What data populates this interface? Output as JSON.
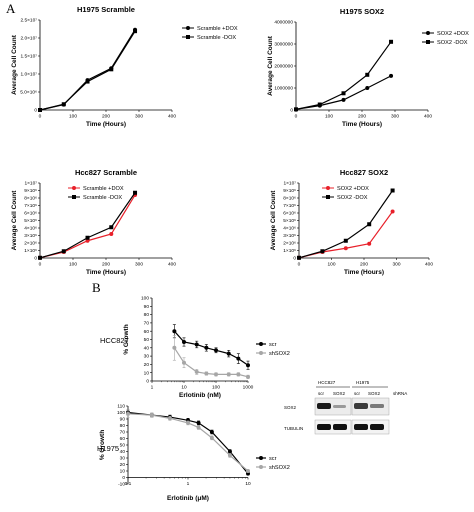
{
  "panel_labels": {
    "a": "A",
    "b": "B"
  },
  "side_labels": {
    "hcc827": "HCC827",
    "h1975": "H1975"
  },
  "western_blot": {
    "group_hcc827": "HCC827",
    "group_h1975": "H1975",
    "lanes_hcc827": [
      "scr",
      "SOX2"
    ],
    "lanes_h1975": [
      "scr",
      "SOX2",
      "shRNA"
    ],
    "row_labels": [
      "SOX2",
      "TUBULIN"
    ]
  },
  "chart_data": [
    {
      "id": "h1975-scramble",
      "type": "line",
      "title": "H1975 Scramble",
      "xlabel": "Time (Hours)",
      "ylabel": "Average Cell Count",
      "xlim": [
        0,
        400
      ],
      "ylim": [
        0,
        25000000
      ],
      "xticks": [
        "0",
        "100",
        "200",
        "300",
        "400"
      ],
      "yticks": [
        "0",
        "5.0×10⁶",
        "1.0×10⁷",
        "1.5×10⁷",
        "2.0×10⁷",
        "2.5×10⁷"
      ],
      "legend_position": "right",
      "x": [
        0,
        72,
        144,
        216,
        288
      ],
      "series": [
        {
          "name": "Scramble +DOX",
          "color": "#000000",
          "marker": "circle",
          "values": [
            0,
            1500000,
            8300000,
            11600000,
            22300000
          ]
        },
        {
          "name": "Scramble -DOX",
          "color": "#000000",
          "marker": "square",
          "values": [
            0,
            1600000,
            7900000,
            11300000,
            21900000
          ]
        }
      ]
    },
    {
      "id": "h1975-sox2",
      "type": "line",
      "title": "H1975 SOX2",
      "xlabel": "Time (Hours)",
      "ylabel": "Average Cell Count",
      "xlim": [
        0,
        400
      ],
      "ylim": [
        0,
        4000000
      ],
      "xticks": [
        "0",
        "100",
        "200",
        "300",
        "400"
      ],
      "yticks": [
        "0",
        "1000000",
        "2000000",
        "3000000",
        "4000000"
      ],
      "legend_position": "right",
      "x": [
        0,
        72,
        144,
        216,
        288
      ],
      "series": [
        {
          "name": "SOX2 +DOX",
          "color": "#000000",
          "marker": "circle",
          "values": [
            30000,
            200000,
            460000,
            1000000,
            1550000
          ]
        },
        {
          "name": "SOX2 -DOX",
          "color": "#000000",
          "marker": "square",
          "values": [
            30000,
            250000,
            760000,
            1600000,
            3100000
          ]
        }
      ]
    },
    {
      "id": "hcc827-scramble",
      "type": "line",
      "title": "Hcc827 Scramble",
      "xlabel": "Time (Hours)",
      "ylabel": "Average Cell Count",
      "xlim": [
        0,
        400
      ],
      "ylim": [
        0,
        10000000
      ],
      "xticks": [
        "0",
        "100",
        "200",
        "300",
        "400"
      ],
      "yticks": [
        "0",
        "1×10⁶",
        "2×10⁶",
        "3×10⁶",
        "4×10⁶",
        "5×10⁶",
        "6×10⁶",
        "7×10⁶",
        "8×10⁶",
        "9×10⁶",
        "1×10⁷"
      ],
      "legend_position": "top-left",
      "x": [
        0,
        72,
        144,
        216,
        288
      ],
      "series": [
        {
          "name": "Scramble +DOX",
          "color": "#e8202a",
          "marker": "circle",
          "values": [
            30000,
            800000,
            2300000,
            3200000,
            8400000
          ]
        },
        {
          "name": "Scramble -DOX",
          "color": "#000000",
          "marker": "square",
          "values": [
            30000,
            900000,
            2700000,
            4100000,
            8700000
          ]
        }
      ]
    },
    {
      "id": "hcc827-sox2",
      "type": "line",
      "title": "Hcc827 SOX2",
      "xlabel": "Time (Hours)",
      "ylabel": "Average Cell Count",
      "xlim": [
        0,
        400
      ],
      "ylim": [
        0,
        10000000
      ],
      "xticks": [
        "0",
        "100",
        "200",
        "300",
        "400"
      ],
      "yticks": [
        "0",
        "1×10⁶",
        "2×10⁶",
        "3×10⁶",
        "4×10⁶",
        "5×10⁶",
        "6×10⁶",
        "7×10⁶",
        "8×10⁶",
        "9×10⁶",
        "1×10⁷"
      ],
      "legend_position": "top-left",
      "x": [
        0,
        72,
        144,
        216,
        288
      ],
      "series": [
        {
          "name": "SOX2 +DOX",
          "color": "#e8202a",
          "marker": "circle",
          "values": [
            30000,
            800000,
            1300000,
            1900000,
            6200000
          ]
        },
        {
          "name": "SOX2 -DOX",
          "color": "#000000",
          "marker": "square",
          "values": [
            30000,
            900000,
            2300000,
            4500000,
            9000000
          ]
        }
      ]
    },
    {
      "id": "hcc827-erlotinib",
      "type": "line",
      "xscale": "log",
      "xlabel": "Erlotinib (nM)",
      "ylabel": "% Growth",
      "xlim": [
        1,
        1000
      ],
      "ylim": [
        0,
        100
      ],
      "xticks": [
        "1",
        "10",
        "100",
        "1000"
      ],
      "yticks": [
        "0",
        "10",
        "20",
        "30",
        "40",
        "50",
        "60",
        "70",
        "80",
        "90",
        "100"
      ],
      "legend_position": "right",
      "x": [
        5,
        10,
        25,
        50,
        100,
        250,
        500,
        1000
      ],
      "series": [
        {
          "name": "scr",
          "color": "#000000",
          "marker": "circle",
          "values": [
            60,
            47,
            44,
            40,
            37,
            33,
            27,
            19
          ],
          "error": [
            8,
            5,
            4,
            4,
            3,
            4,
            6,
            5
          ]
        },
        {
          "name": "shSOX2",
          "color": "#a6a6a6",
          "marker": "circle",
          "values": [
            40,
            22,
            11,
            9,
            8,
            8,
            8,
            5
          ],
          "error": [
            15,
            6,
            3,
            2,
            2,
            2,
            2,
            2
          ]
        }
      ]
    },
    {
      "id": "h1975-erlotinib",
      "type": "line",
      "xscale": "log",
      "xlabel": "Erlotinib (μM)",
      "ylabel": "% Growth",
      "xlim": [
        0.1,
        10
      ],
      "ylim": [
        -10,
        110
      ],
      "xticks": [
        "0.1",
        "1",
        "10"
      ],
      "yticks": [
        "-10",
        "0",
        "10",
        "20",
        "30",
        "40",
        "50",
        "60",
        "70",
        "80",
        "90",
        "100",
        "110"
      ],
      "legend_position": "right",
      "x": [
        0.1,
        0.25,
        0.5,
        1,
        1.5,
        2.5,
        5,
        10
      ],
      "series": [
        {
          "name": "scr",
          "color": "#000000",
          "marker": "circle",
          "values": [
            100,
            96,
            93,
            88,
            84,
            70,
            40,
            6
          ],
          "error": [
            4,
            3,
            3,
            3,
            3,
            3,
            3,
            2
          ]
        },
        {
          "name": "shSOX2",
          "color": "#a6a6a6",
          "marker": "circle",
          "values": [
            98,
            96,
            91,
            84,
            77,
            61,
            34,
            10
          ],
          "error": [
            6,
            3,
            3,
            3,
            3,
            3,
            3,
            2
          ]
        }
      ]
    }
  ]
}
